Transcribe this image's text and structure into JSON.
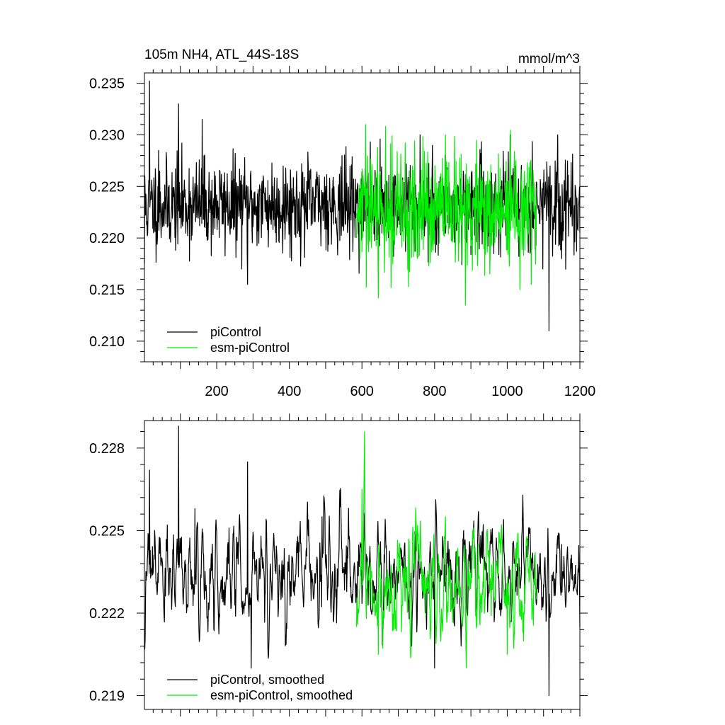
{
  "chart_data": [
    {
      "type": "line",
      "title": "105m NH4, ATL_44S-18S",
      "units": "mmol/m^3",
      "xlim": [
        1,
        1200
      ],
      "ylim": [
        0.208,
        0.236
      ],
      "xticks": [
        200,
        400,
        600,
        800,
        1000,
        1200
      ],
      "xtick_labels": [
        "200",
        "400",
        "600",
        "800",
        "1000",
        "1200"
      ],
      "yticks": [
        0.21,
        0.215,
        0.22,
        0.225,
        0.23,
        0.235
      ],
      "ytick_labels": [
        "0.210",
        "0.215",
        "0.220",
        "0.225",
        "0.230",
        "0.235"
      ],
      "grid": false,
      "legend_position": "bottom-left",
      "series": [
        {
          "name": "piControl",
          "color": "#000000",
          "x_range": [
            1,
            1200
          ],
          "mean": 0.2232,
          "spread": 0.0022,
          "points": [
            [
              1,
              0.2175
            ],
            [
              10,
              0.2205
            ],
            [
              15,
              0.2352
            ],
            [
              40,
              0.2285
            ],
            [
              95,
              0.233
            ],
            [
              160,
              0.2315
            ],
            [
              285,
              0.2155
            ],
            [
              500,
              0.225
            ],
            [
              760,
              0.23
            ],
            [
              1115,
              0.211
            ],
            [
              1150,
              0.218
            ],
            [
              1200,
              0.2205
            ]
          ]
        },
        {
          "name": "esm-piControl",
          "color": "#00ee00",
          "x_range": [
            585,
            1080
          ],
          "mean": 0.2225,
          "spread": 0.0028,
          "points": [
            [
              585,
              0.22
            ],
            [
              610,
              0.231
            ],
            [
              645,
              0.2142
            ],
            [
              665,
              0.2308
            ],
            [
              830,
              0.23
            ],
            [
              885,
              0.2135
            ],
            [
              1000,
              0.2255
            ],
            [
              1080,
              0.2205
            ]
          ]
        }
      ]
    },
    {
      "type": "line",
      "title": "",
      "xlim": [
        1,
        1200
      ],
      "ylim": [
        0.2185,
        0.229
      ],
      "xticks": [
        200,
        400,
        600,
        800,
        1000,
        1200
      ],
      "xtick_labels": [],
      "yticks": [
        0.219,
        0.222,
        0.225,
        0.228
      ],
      "ytick_labels": [
        "0.219",
        "0.222",
        "0.225",
        "0.228"
      ],
      "grid": false,
      "legend_position": "bottom-left",
      "series": [
        {
          "name": "piControl, smoothed",
          "color": "#000000",
          "x_range": [
            1,
            1200
          ],
          "mean": 0.2233,
          "spread": 0.0011,
          "points": [
            [
              1,
              0.221
            ],
            [
              15,
              0.2272
            ],
            [
              95,
              0.2288
            ],
            [
              140,
              0.2258
            ],
            [
              285,
              0.2275
            ],
            [
              295,
              0.22
            ],
            [
              490,
              0.2255
            ],
            [
              800,
              0.22
            ],
            [
              1115,
              0.219
            ],
            [
              1150,
              0.2245
            ],
            [
              1200,
              0.2215
            ]
          ]
        },
        {
          "name": "esm-piControl, smoothed",
          "color": "#00ee00",
          "x_range": [
            585,
            1080
          ],
          "mean": 0.223,
          "spread": 0.0013,
          "points": [
            [
              585,
              0.2215
            ],
            [
              600,
              0.2265
            ],
            [
              645,
              0.2205
            ],
            [
              830,
              0.2255
            ],
            [
              1000,
              0.2205
            ],
            [
              1080,
              0.2225
            ]
          ]
        }
      ]
    }
  ]
}
